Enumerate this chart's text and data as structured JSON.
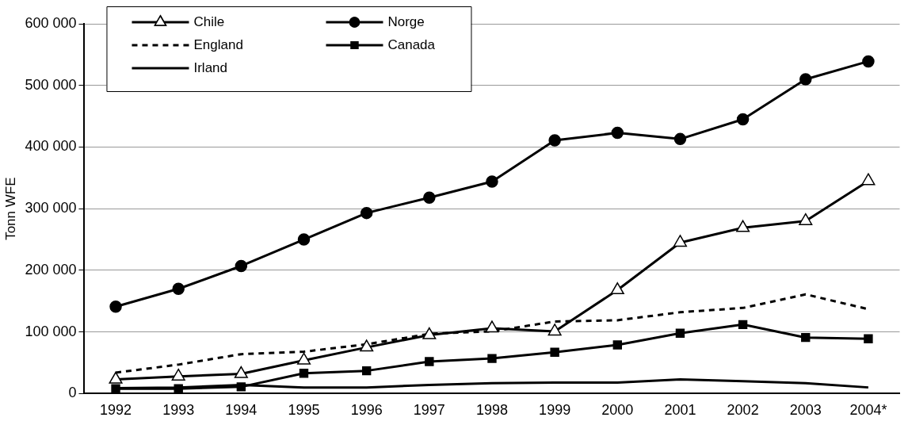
{
  "chart_data": {
    "type": "line",
    "ylabel": "Tonn WFE",
    "categories": [
      "1992",
      "1993",
      "1994",
      "1995",
      "1996",
      "1997",
      "1998",
      "1999",
      "2000",
      "2001",
      "2002",
      "2003",
      "2004*"
    ],
    "series": [
      {
        "name": "Chile",
        "color": "#000000",
        "marker": "triangle",
        "line_style": "solid",
        "values": [
          23000,
          28000,
          32000,
          54000,
          75000,
          95000,
          106000,
          101000,
          168000,
          245000,
          269000,
          280000,
          345000
        ]
      },
      {
        "name": "Norge",
        "color": "#000000",
        "marker": "circle",
        "line_style": "solid",
        "values": [
          141000,
          170000,
          207000,
          250000,
          293000,
          318000,
          344000,
          411000,
          423000,
          413000,
          445000,
          510000,
          539000
        ]
      },
      {
        "name": "England",
        "color": "#000000",
        "marker": "none",
        "line_style": "dashed",
        "values": [
          34000,
          47000,
          64000,
          68000,
          80000,
          97000,
          101000,
          117000,
          119000,
          132000,
          139000,
          161000,
          137000
        ]
      },
      {
        "name": "Canada",
        "color": "#000000",
        "marker": "square",
        "line_style": "solid",
        "values": [
          8000,
          8000,
          11000,
          33000,
          37000,
          52000,
          57000,
          67000,
          79000,
          98000,
          112000,
          91000,
          89000
        ]
      },
      {
        "name": "Irland",
        "color": "#000000",
        "marker": "none",
        "line_style": "solid",
        "values": [
          9000,
          10000,
          14000,
          10000,
          10000,
          14000,
          17000,
          18000,
          18000,
          23000,
          20000,
          17000,
          10000
        ]
      }
    ],
    "ylim": [
      0,
      600000
    ],
    "yticks": [
      {
        "value": 0,
        "label": "0"
      },
      {
        "value": 100000,
        "label": "100 000"
      },
      {
        "value": 200000,
        "label": "200 000"
      },
      {
        "value": 300000,
        "label": "300 000"
      },
      {
        "value": 400000,
        "label": "400 000"
      },
      {
        "value": 500000,
        "label": "500 000"
      },
      {
        "value": 600000,
        "label": "600 000"
      }
    ],
    "grid": "y",
    "legend": "top left"
  }
}
